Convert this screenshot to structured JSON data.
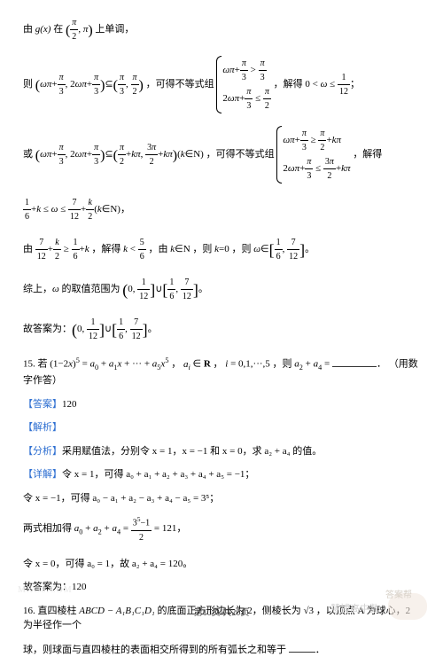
{
  "l1a": "由 ",
  "l1b": " 在 ",
  "l1c": " 上单调，",
  "gx": "g(x)",
  "intv_pi2_pi": "(π/2, π)",
  "l2a": "则 ",
  "l2b": "，可得不等式组 ",
  "l2c": "，解得 ",
  "lhs2": "(ωπ + π/3, 2ωπ + π/3) ⊆ (π/3, π/2)",
  "c2r1": "ωπ + π/3 > π/3",
  "c2r2": "2ωπ + π/3 ≤ π/2",
  "res2": "0 < ω ≤ 1/12",
  "l3a": "或 ",
  "l3b": "，可得不等式组 ",
  "l3c": "，解得",
  "lhs3": "(ωπ + π/3, 2ωπ + π/3) ⊆ (π/2 + kπ, 3π/2 + kπ) (k ∈ N)",
  "c3r1": "ωπ + π/3 ≥ π/2 + kπ",
  "c3r2": "2ωπ + π/3 ≤ 3π/2 + kπ",
  "l4": "1/6 + k ≤ ω ≤ 7/12 + k/2 (k ∈ N)，",
  "l5a": "由 ",
  "l5b": "，解得 ",
  "l5c": "，由 ",
  "l5d": "，则 ",
  "l5e": "，则 ",
  "ineq5": "7/12 + k/2 ≥ 1/6 + k",
  "kres": "k < 5/6",
  "kN": "k ∈ N",
  "k0": "k = 0",
  "omres": "ω ∈ [1/6, 7/12]",
  "l6": "综上，ω 的取值范围为 (0, 1/12] ∪ [1/6, 7/12]。",
  "l7": "故答案为：(0, 1/12] ∪ [1/6, 7/12]。",
  "q15a": "15.  若 ",
  "q15b": "，",
  "q15c": "，",
  "q15d": "，则 ",
  "q15e": "（用数字作答）",
  "exp15": "(1−2x)⁵ = a₀ + a₁x + ··· + a₅x⁵",
  "ai": "aᵢ ∈ R",
  "irng": "i = 0,1,···,5",
  "a24": "a₂ + a₄ = ",
  "ans": "【答案】",
  "ansv": "120",
  "jiexi": "【解析】",
  "fx": "【分析】",
  "fxtxt": "采用赋值法，分别令 x = 1，x = −1 和 x = 0，求 a₂ + a₄ 的值。",
  "xj": "【详解】",
  "xjt1": "令 x = 1，可得 a₀ + a₁ + a₂ + a₃ + a₄ + a₅ = −1；",
  "xjt2": "令 x = −1，可得 a₀ − a₁ + a₂ − a₃ + a₄ − a₅ = 3⁵；",
  "xjt3a": "两式相加得 ",
  "xjt3b": "a₀ + a₂ + a₄ = ",
  "xjt3c": " = 121，",
  "xjt4": "令 x = 0，可得 a₀ = 1，故 a₂ + a₄ = 120。",
  "gdaw": "故答案为：120",
  "q16a": "16.  直四棱柱 ",
  "q16b": " 的底面正方形边长为 2，侧棱长为 ",
  "q16c": "，以顶点 A 为球心，2 为半径作一个",
  "prism": "ABCD − A₁B₁C₁D₁",
  "rt3": "√3",
  "q16d": "球，则球面与直四棱柱的表面相交所得到的所有弧长之和等于 ",
  "pager": "第10页/共20页",
  "wm_text": "慧博高中数",
  "wm_text2": "答案帮"
}
